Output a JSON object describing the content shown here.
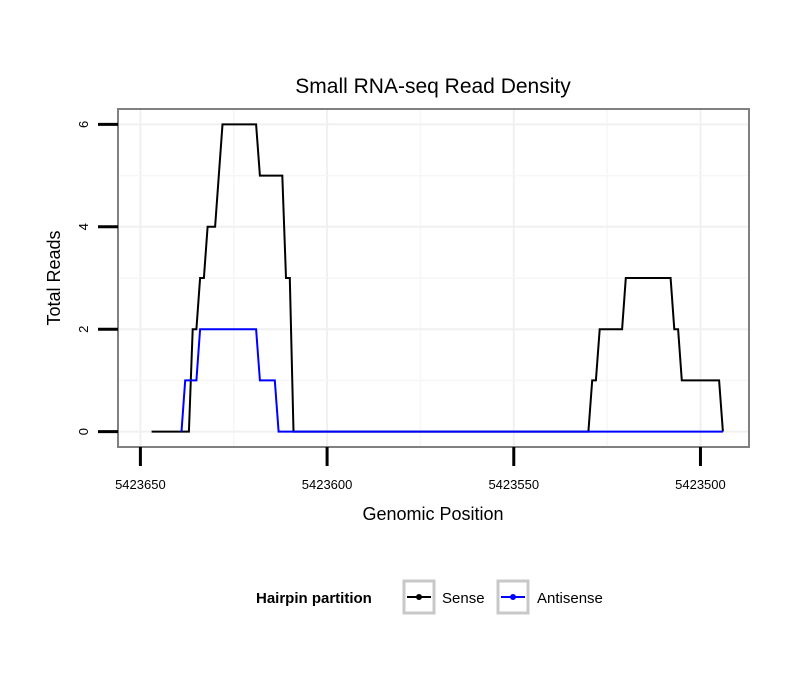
{
  "chart_data": {
    "type": "line",
    "title": "Small RNA-seq Read Density",
    "xlabel": "Genomic Position",
    "ylabel": "Total Reads",
    "x_reversed": true,
    "xlim": [
      5423656,
      5423487
    ],
    "ylim": [
      -0.3,
      6.3
    ],
    "x_ticks": [
      {
        "value": 5423650,
        "label": "5423650"
      },
      {
        "value": 5423600,
        "label": "5423600"
      },
      {
        "value": 5423550,
        "label": "5423550"
      },
      {
        "value": 5423500,
        "label": "5423500"
      }
    ],
    "y_ticks": [
      {
        "value": 0,
        "label": "0"
      },
      {
        "value": 2,
        "label": "2"
      },
      {
        "value": 4,
        "label": "4"
      },
      {
        "value": 6,
        "label": "6"
      }
    ],
    "grid": true,
    "legend": {
      "title": "Hairpin partition",
      "position": "bottom"
    },
    "series": [
      {
        "name": "Sense",
        "color": "#000000",
        "points": [
          [
            5423647,
            0
          ],
          [
            5423637,
            0
          ],
          [
            5423636,
            2
          ],
          [
            5423635,
            2
          ],
          [
            5423634,
            3
          ],
          [
            5423633,
            3
          ],
          [
            5423632,
            4
          ],
          [
            5423630,
            4
          ],
          [
            5423628,
            6
          ],
          [
            5423619,
            6
          ],
          [
            5423618,
            5
          ],
          [
            5423612,
            5
          ],
          [
            5423611,
            3
          ],
          [
            5423610,
            3
          ],
          [
            5423609,
            0
          ],
          [
            5423530,
            0
          ],
          [
            5423529,
            1
          ],
          [
            5423528,
            1
          ],
          [
            5423527,
            2
          ],
          [
            5423521,
            2
          ],
          [
            5423520,
            3
          ],
          [
            5423508,
            3
          ],
          [
            5423507,
            2
          ],
          [
            5423506,
            2
          ],
          [
            5423505,
            1
          ],
          [
            5423495,
            1
          ],
          [
            5423494,
            0
          ]
        ]
      },
      {
        "name": "Antisense",
        "color": "#0000ff",
        "points": [
          [
            5423639,
            0
          ],
          [
            5423638,
            1
          ],
          [
            5423635,
            1
          ],
          [
            5423634,
            2
          ],
          [
            5423619,
            2
          ],
          [
            5423618,
            1
          ],
          [
            5423614,
            1
          ],
          [
            5423613,
            0
          ],
          [
            5423494,
            0
          ]
        ]
      }
    ]
  }
}
